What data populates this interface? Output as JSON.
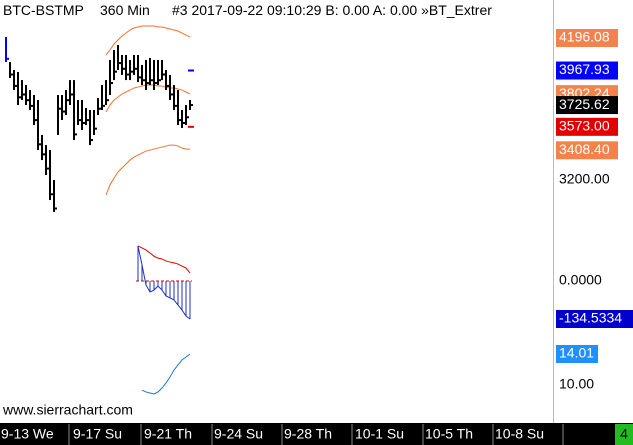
{
  "header": {
    "symbol": "BTC-BSTMP",
    "interval": "360 Min",
    "info": "#3 2017-09-22 09:10:29 B: 0.00 A: 0.00 »BT_Extrer"
  },
  "price_panel": {
    "bars": {
      "high": [
        4203,
        4028,
        3972,
        3958,
        3901,
        3866,
        3831,
        3796,
        3761,
        3516,
        3445,
        3410,
        3200,
        3796,
        3796,
        3831,
        3901,
        3901,
        3761,
        3761,
        3705,
        3691,
        3691,
        3775,
        3866,
        3901,
        4042,
        4112,
        4147,
        4077,
        4077,
        4042,
        4077,
        4077,
        4007,
        4042,
        4056,
        4042,
        4042,
        4042,
        3972,
        3937,
        3866,
        3831,
        3691,
        3726,
        3761
      ],
      "low": [
        4028,
        3916,
        3831,
        3726,
        3761,
        3726,
        3691,
        3586,
        3410,
        3340,
        3235,
        3060,
        2976,
        3516,
        3621,
        3656,
        3726,
        3481,
        3586,
        3551,
        3586,
        3445,
        3516,
        3656,
        3691,
        3726,
        3796,
        3901,
        3972,
        3937,
        3901,
        3901,
        3937,
        3887,
        3866,
        3831,
        3866,
        3831,
        3866,
        3901,
        3831,
        3761,
        3691,
        3586,
        3565,
        3586,
        3691
      ],
      "close": [
        4050,
        3940,
        3860,
        3780,
        3800,
        3760,
        3720,
        3620,
        3450,
        3380,
        3280,
        3100,
        3000,
        3700,
        3680,
        3760,
        3800,
        3520,
        3620,
        3600,
        3620,
        3480,
        3560,
        3700,
        3720,
        3760,
        3880,
        3960,
        4020,
        3980,
        3940,
        3960,
        3980,
        3920,
        3900,
        3880,
        3900,
        3880,
        3900,
        3940,
        3860,
        3800,
        3720,
        3620,
        3600,
        3640,
        3725.62
      ]
    },
    "bands": {
      "upper": [
        4077,
        4112,
        4154,
        4182,
        4210,
        4231,
        4252,
        4266,
        4273,
        4280,
        4280,
        4280,
        4280,
        4273,
        4273,
        4266,
        4259,
        4252,
        4245,
        4231,
        4217,
        4203
      ],
      "middle": [
        3677,
        3726,
        3761,
        3782,
        3803,
        3817,
        3831,
        3845,
        3852,
        3859,
        3866,
        3866,
        3866,
        3859,
        3859,
        3852,
        3845,
        3845,
        3838,
        3831,
        3817,
        3803
      ],
      "lower": [
        3095,
        3165,
        3214,
        3256,
        3284,
        3312,
        3340,
        3361,
        3375,
        3389,
        3403,
        3410,
        3417,
        3424,
        3431,
        3438,
        3445,
        3445,
        3438,
        3424,
        3417,
        3417
      ]
    },
    "scale": [
      {
        "value": 4196.08,
        "label": "4196.08",
        "color": "#f4834b"
      },
      {
        "value": 3967.93,
        "label": "3967.93",
        "color": "#0000ff"
      },
      {
        "value": 3802.24,
        "label": "3802.24",
        "color": "#f4834b"
      },
      {
        "value": 3725.62,
        "label": "3725.62",
        "color": "#000000"
      },
      {
        "value": 3573.0,
        "label": "3573.00",
        "color": "#e00000"
      },
      {
        "value": 3408.4,
        "label": "3408.40",
        "color": "#f4834b"
      },
      {
        "value": 3200.0,
        "label": "3200.00",
        "color": null
      }
    ]
  },
  "macd_panel": {
    "line": [
      124,
      117,
      110,
      99,
      88,
      81,
      78,
      71,
      67,
      64,
      60,
      53,
      46,
      28
    ],
    "histogram": [
      124,
      57,
      -14,
      -39,
      -32,
      -18,
      -32,
      -53,
      -60,
      -67,
      -85,
      -103,
      -124,
      -134.5334
    ],
    "scale": [
      {
        "value": 0,
        "label": "0.0000",
        "color": null
      },
      {
        "value": -134.5334,
        "label": "-134.5334",
        "color": "#0000cc"
      }
    ]
  },
  "rsi_panel": {
    "line": [
      9.35,
      9.1,
      8.97,
      8.84,
      9.1,
      9.61,
      10.26,
      11.03,
      11.94,
      12.59,
      13.23,
      13.62,
      14.01
    ],
    "scale": [
      {
        "value": 14.01,
        "label": "14.01",
        "color": "#1e90ff"
      },
      {
        "value": 10.0,
        "label": "10.00",
        "color": null
      }
    ]
  },
  "watermark": "www.sierrachart.com",
  "dates": [
    "9-13 We",
    "9-17 Su",
    "9-21 Th",
    "9-24 Su",
    "9-28 Th",
    "10-1 Su",
    "10-5 Th",
    "10-8 Su"
  ],
  "badge": "4"
}
